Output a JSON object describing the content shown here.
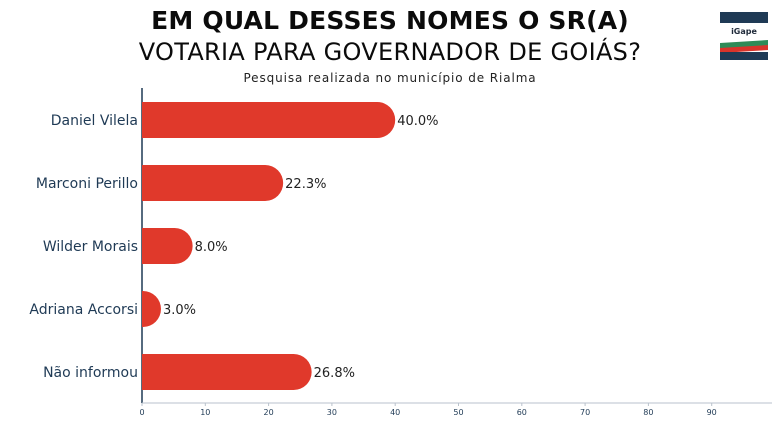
{
  "header": {
    "title_line1": "EM QUAL DESSES NOMES O SR(A)",
    "title_line2": "VOTARIA PARA GOVERNADOR DE GOIÁS?",
    "subtitle": "Pesquisa realizada no município de Rialma"
  },
  "logo": {
    "text": "iGape",
    "colors": {
      "navy": "#1f3a55",
      "green": "#2e8b57",
      "red": "#d9342b"
    }
  },
  "chart_data": {
    "type": "bar",
    "orientation": "horizontal",
    "categories": [
      "Daniel Vilela",
      "Marconi Perillo",
      "Wilder Morais",
      "Adriana Accorsi",
      "Não informou"
    ],
    "values": [
      40.0,
      22.3,
      8.0,
      3.0,
      26.8
    ],
    "value_labels": [
      "40.0%",
      "22.3%",
      "8.0%",
      "3.0%",
      "26.8%"
    ],
    "xlim": [
      0,
      100
    ],
    "xticks": [
      "0",
      "10",
      "20",
      "30",
      "40",
      "50",
      "60",
      "70",
      "80",
      "90"
    ],
    "xtick_values": [
      0,
      10,
      20,
      30,
      40,
      50,
      60,
      70,
      80,
      90
    ],
    "grid": false,
    "bar_color": "#e0392b",
    "axis_color": "#1f3a55"
  }
}
